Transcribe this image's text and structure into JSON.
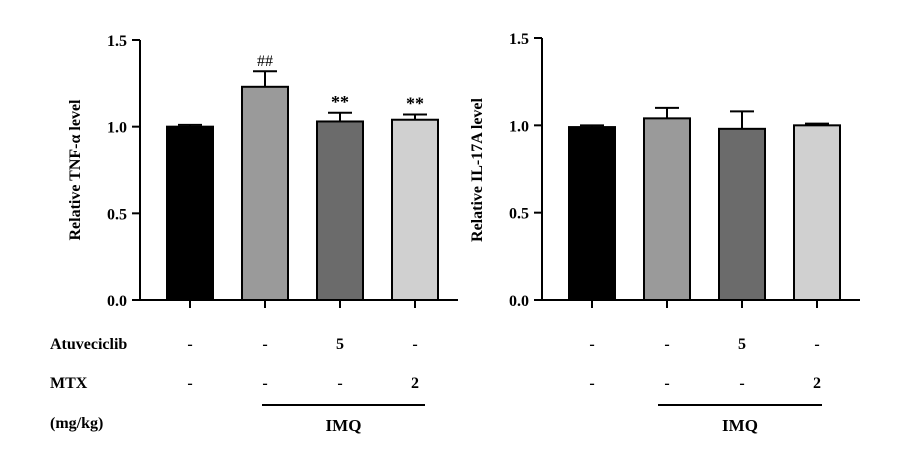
{
  "chart_data": [
    {
      "type": "bar",
      "ylabel": "Relative TNF-α level",
      "ylim": [
        0,
        1.5
      ],
      "yticks": [
        "0.0",
        "0.5",
        "1.0",
        "1.5"
      ],
      "bars": [
        {
          "value": 1.0,
          "error": 0.01,
          "color": "#000000",
          "annotation": ""
        },
        {
          "value": 1.23,
          "error": 0.09,
          "color": "#9a9a9a",
          "annotation": "##"
        },
        {
          "value": 1.03,
          "error": 0.05,
          "color": "#6b6b6b",
          "annotation": "**"
        },
        {
          "value": 1.04,
          "error": 0.03,
          "color": "#d0d0d0",
          "annotation": "**"
        }
      ],
      "grid": false
    },
    {
      "type": "bar",
      "ylabel": "Relative IL-17A level",
      "ylim": [
        0,
        1.5
      ],
      "yticks": [
        "0.0",
        "0.5",
        "1.0",
        "1.5"
      ],
      "bars": [
        {
          "value": 0.99,
          "error": 0.01,
          "color": "#000000",
          "annotation": ""
        },
        {
          "value": 1.04,
          "error": 0.06,
          "color": "#9a9a9a",
          "annotation": ""
        },
        {
          "value": 0.98,
          "error": 0.1,
          "color": "#6b6b6b",
          "annotation": ""
        },
        {
          "value": 1.0,
          "error": 0.01,
          "color": "#d0d0d0",
          "annotation": ""
        }
      ],
      "grid": false
    }
  ],
  "treatment_table": {
    "row_labels": [
      "Atuveciclib",
      "MTX",
      "(mg/kg)"
    ],
    "atuveciclib": [
      "-",
      "-",
      "5",
      "-"
    ],
    "mtx": [
      "-",
      "-",
      "-",
      "2"
    ],
    "group_label": "IMQ"
  }
}
